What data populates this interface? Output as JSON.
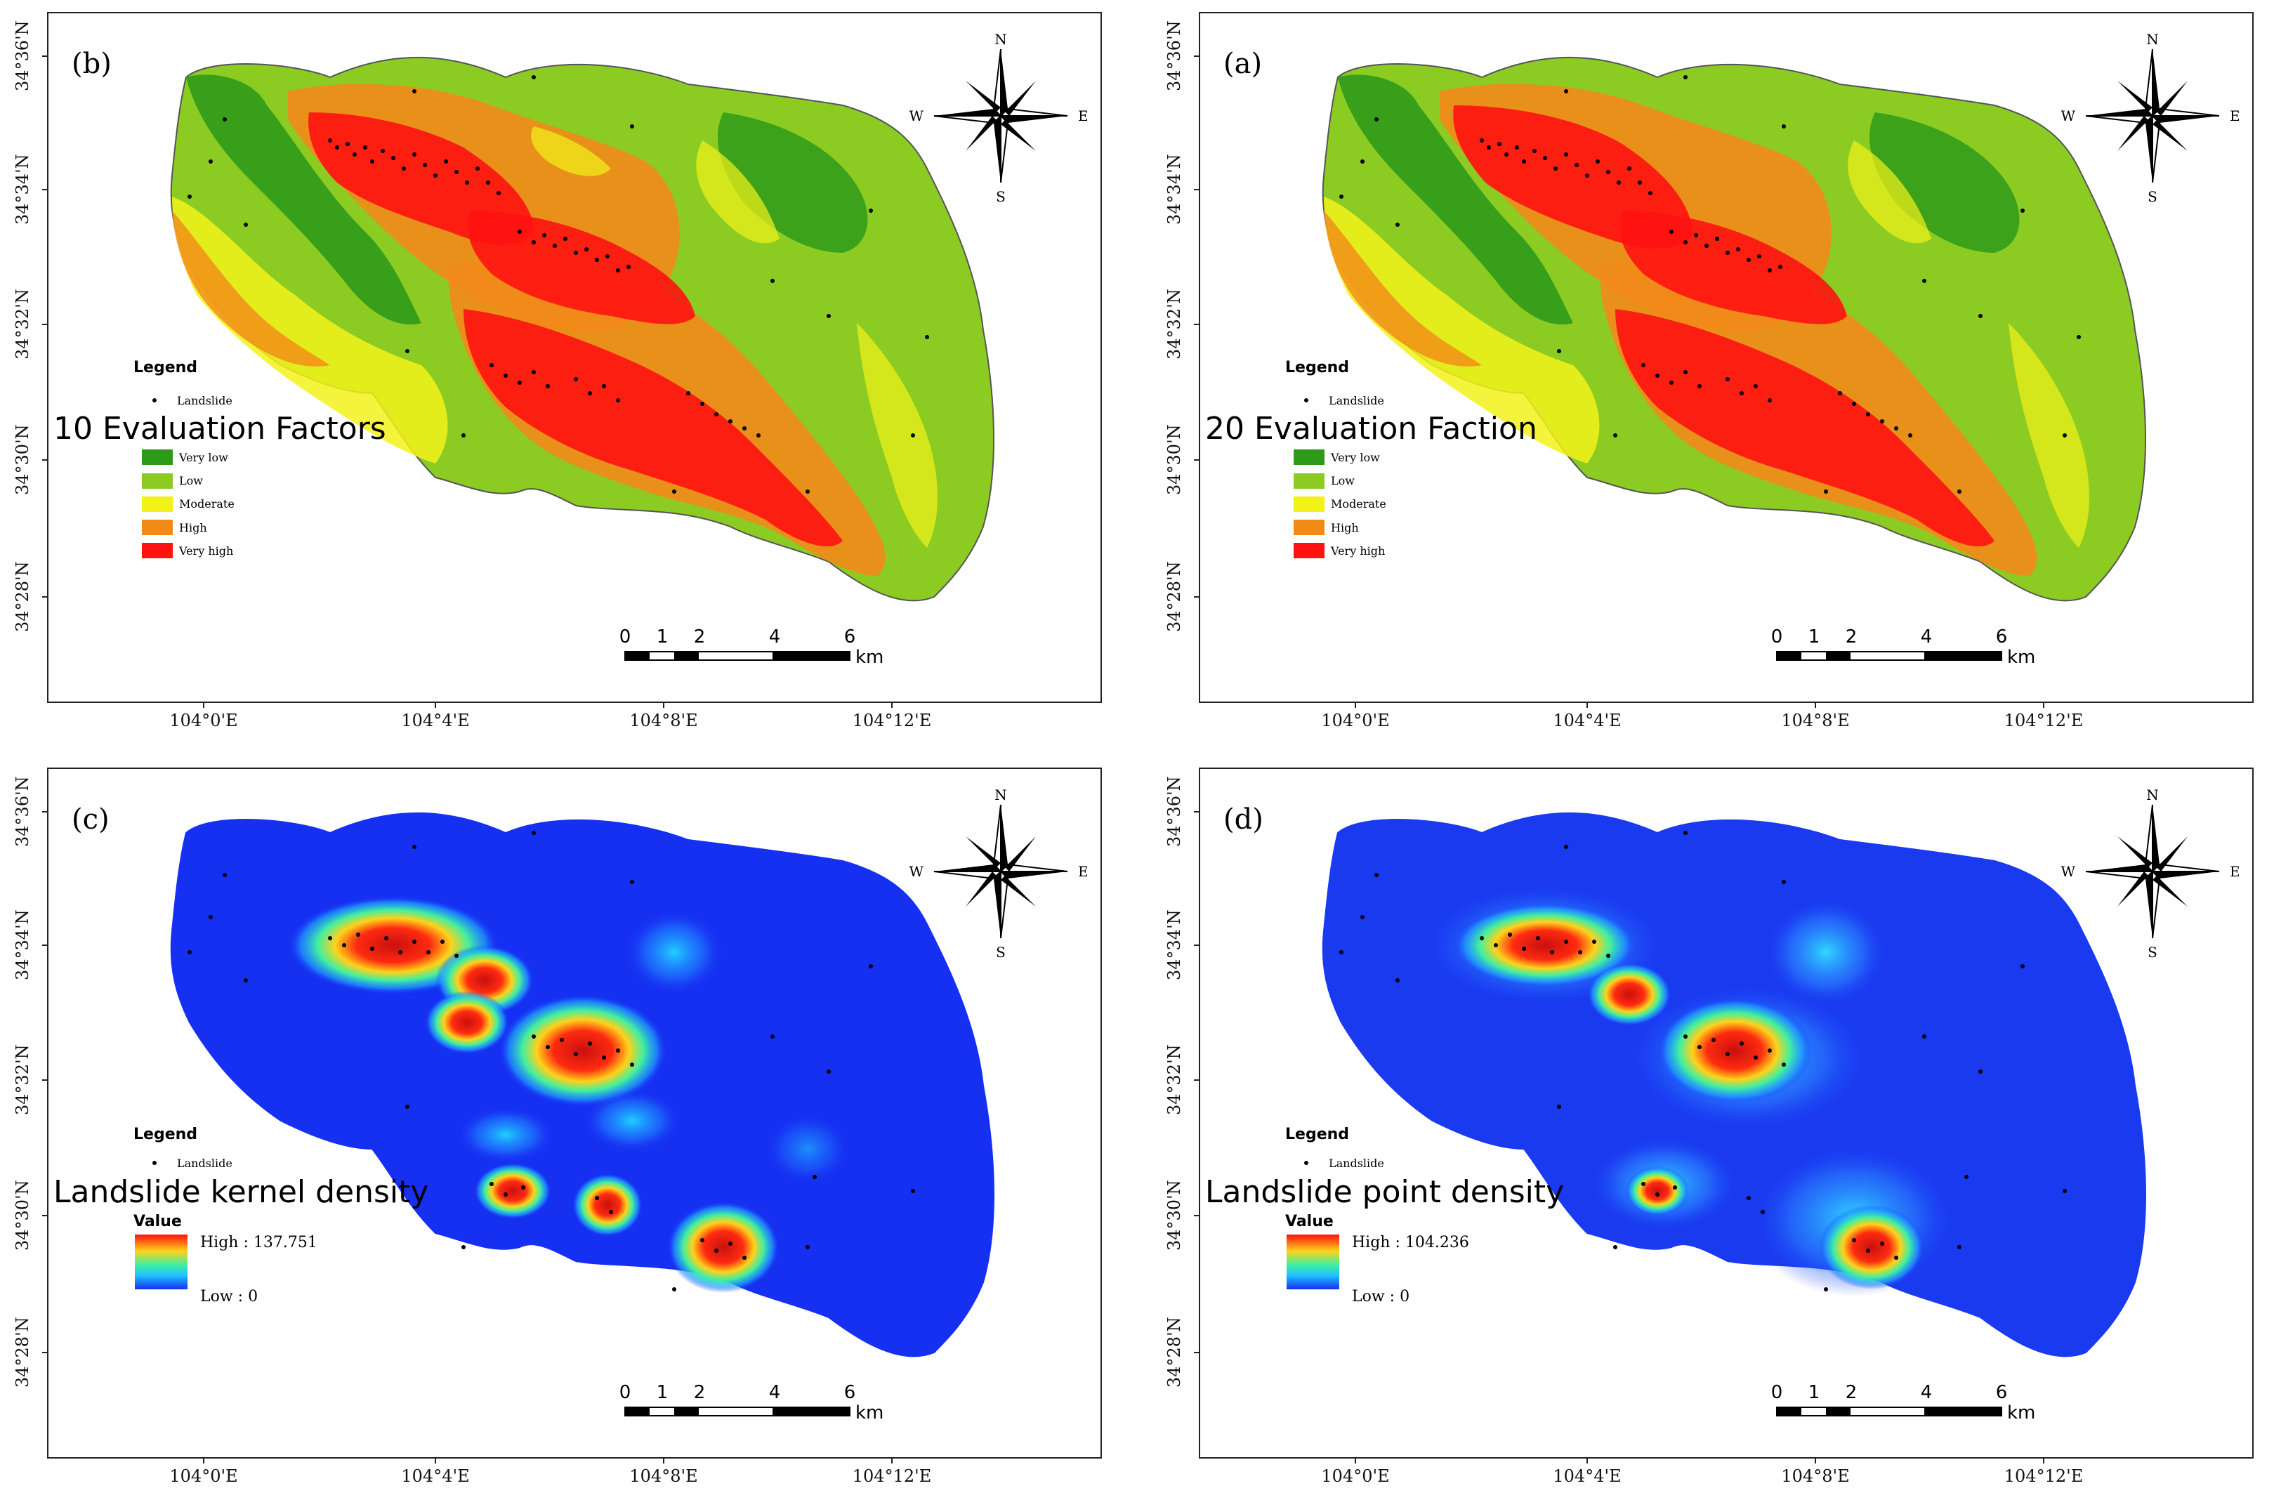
{
  "colors": {
    "very_low": "#2e9a1a",
    "low": "#8ccc22",
    "moderate": "#f2f21a",
    "high": "#f28a18",
    "very_high": "#ff1212",
    "density_base": "#1630f2",
    "landslide": "#000000"
  },
  "axes": {
    "lat_ticks": [
      "34°36'N",
      "34°34'N",
      "34°32'N",
      "34°30'N",
      "34°28'N"
    ],
    "lon_ticks": [
      "104°0'E",
      "104°4'E",
      "104°8'E",
      "104°12'E"
    ]
  },
  "compass": {
    "n": "N",
    "s": "S",
    "e": "E",
    "w": "W"
  },
  "scale_bar": {
    "ticks": [
      "0",
      "1",
      "2",
      "4",
      "6"
    ],
    "unit": "km"
  },
  "legend_common": {
    "title": "Legend",
    "point_label": "Landslide"
  },
  "panels": [
    {
      "id": "a",
      "panel_label": "(a)",
      "type": "susceptibility",
      "big_title": "20 Evaluation Faction",
      "classes": [
        "Very low",
        "Low",
        "Moderate",
        "High",
        "Very high"
      ]
    },
    {
      "id": "b",
      "panel_label": "(b)",
      "type": "susceptibility",
      "big_title": "10 Evaluation Factors",
      "classes": [
        "Very low",
        "Low",
        "Moderate",
        "High",
        "Very high"
      ]
    },
    {
      "id": "c",
      "panel_label": "(c)",
      "type": "density",
      "big_title": "Landslide kernel density",
      "value_title": "Value",
      "high": "High : 137.751",
      "low": "Low : 0"
    },
    {
      "id": "d",
      "panel_label": "(d)",
      "type": "density",
      "big_title": "Landslide point density",
      "value_title": "Value",
      "high": "High : 104.236",
      "low": "Low : 0"
    }
  ]
}
